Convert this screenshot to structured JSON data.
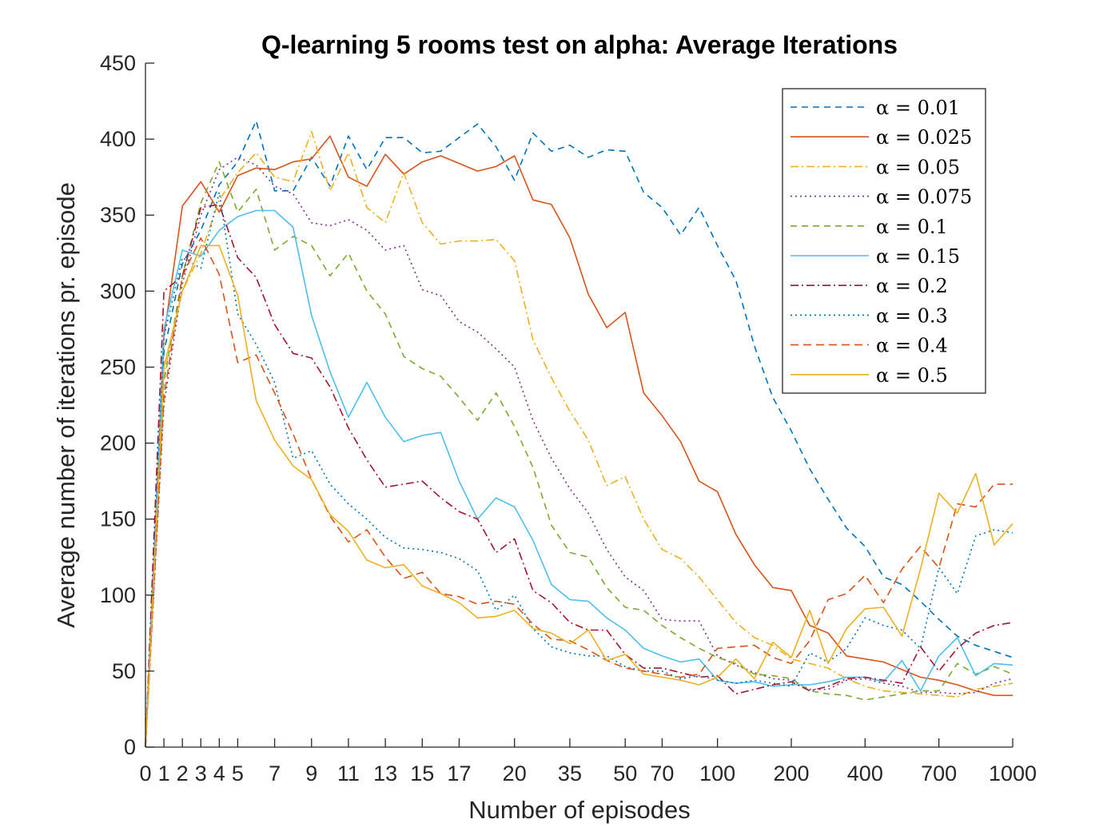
{
  "chart_data": {
    "type": "line",
    "title": "Q-learning 5 rooms test on alpha: Average Iterations",
    "xlabel": "Number of episodes",
    "ylabel": "Average number of iterations pr. episode",
    "ylim": [
      0,
      450
    ],
    "yticks": [
      0,
      50,
      100,
      150,
      200,
      250,
      300,
      350,
      400,
      450
    ],
    "xtick_labels": [
      "0",
      "1",
      "2",
      "3",
      "4",
      "5",
      "7",
      "9",
      "11",
      "13",
      "15",
      "17",
      "20",
      "35",
      "50",
      "70",
      "100",
      "200",
      "400",
      "700",
      "1000"
    ],
    "xtick_index": [
      0,
      1,
      2,
      3,
      4,
      5,
      7,
      9,
      11,
      13,
      15,
      17,
      20,
      23,
      26,
      28,
      31,
      35,
      39,
      43,
      47
    ],
    "grid": false,
    "legend_position": "top-right",
    "x_positions_count": 47,
    "series": [
      {
        "name": "α = 0.01",
        "color": "#0072BD",
        "dash": "8,6",
        "values": [
          0,
          260,
          318,
          340,
          370,
          385,
          412,
          366,
          366,
          388,
          369,
          402,
          380,
          401,
          401,
          391,
          392,
          401,
          410,
          395,
          373,
          404,
          392,
          396,
          388,
          393,
          392,
          365,
          355,
          337,
          355,
          330,
          307,
          264,
          230,
          208,
          183,
          163,
          144,
          132,
          112,
          107,
          96,
          84,
          73,
          67,
          63,
          59
        ]
      },
      {
        "name": "α = 0.025",
        "color": "#D95319",
        "dash": "",
        "values": [
          0,
          270,
          356,
          372,
          352,
          376,
          381,
          380,
          385,
          387,
          402,
          375,
          369,
          390,
          377,
          385,
          389,
          384,
          379,
          382,
          389,
          360,
          357,
          335,
          298,
          276,
          286,
          233,
          218,
          201,
          175,
          168,
          140,
          120,
          105,
          103,
          80,
          75,
          60,
          58,
          56,
          51,
          46,
          44,
          41,
          37,
          34,
          34
        ]
      },
      {
        "name": "α = 0.05",
        "color": "#EDB120",
        "dash": "10,4,2,4",
        "values": [
          0,
          245,
          300,
          325,
          360,
          378,
          391,
          375,
          372,
          405,
          366,
          391,
          355,
          345,
          378,
          345,
          331,
          333,
          333,
          334,
          320,
          268,
          243,
          221,
          202,
          172,
          178,
          150,
          130,
          124,
          112,
          97,
          82,
          72,
          67,
          58,
          55,
          52,
          45,
          40,
          37,
          36,
          35,
          34,
          33,
          38,
          40,
          42
        ]
      },
      {
        "name": "α = 0.075",
        "color": "#7E2F8E",
        "dash": "2,4",
        "values": [
          0,
          225,
          305,
          350,
          380,
          388,
          383,
          369,
          364,
          345,
          343,
          347,
          340,
          327,
          330,
          301,
          297,
          280,
          273,
          262,
          250,
          215,
          190,
          170,
          154,
          130,
          112,
          103,
          84,
          83,
          83,
          60,
          54,
          49,
          45,
          44,
          38,
          38,
          44,
          45,
          42,
          40,
          36,
          36,
          35,
          36,
          42,
          45
        ]
      },
      {
        "name": "α = 0.1",
        "color": "#77AC30",
        "dash": "8,6",
        "values": [
          0,
          240,
          310,
          358,
          385,
          352,
          367,
          327,
          336,
          330,
          310,
          325,
          300,
          285,
          257,
          249,
          244,
          230,
          215,
          233,
          211,
          184,
          146,
          128,
          125,
          105,
          92,
          90,
          80,
          72,
          65,
          59,
          55,
          48,
          47,
          45,
          37,
          35,
          34,
          31,
          33,
          35,
          37,
          37,
          55,
          48,
          53,
          48
        ]
      },
      {
        "name": "α = 0.15",
        "color": "#4DBEEE",
        "dash": "",
        "values": [
          0,
          275,
          327,
          323,
          340,
          349,
          353,
          353,
          342,
          284,
          247,
          217,
          240,
          217,
          201,
          205,
          207,
          175,
          150,
          164,
          158,
          136,
          107,
          97,
          96,
          85,
          77,
          65,
          60,
          56,
          58,
          44,
          42,
          43,
          40,
          41,
          41,
          43,
          46,
          46,
          43,
          57,
          37,
          60,
          72,
          47,
          55,
          54
        ]
      },
      {
        "name": "α = 0.2",
        "color": "#A2142F",
        "dash": "10,4,2,4",
        "values": [
          0,
          300,
          310,
          355,
          357,
          322,
          309,
          278,
          259,
          256,
          237,
          210,
          189,
          171,
          173,
          175,
          164,
          155,
          150,
          128,
          137,
          103,
          95,
          82,
          77,
          77,
          61,
          52,
          52,
          49,
          46,
          47,
          35,
          38,
          41,
          43,
          37,
          40,
          45,
          46,
          44,
          42,
          66,
          50,
          65,
          75,
          80,
          82
        ]
      },
      {
        "name": "α = 0.3",
        "color": "#0072BD",
        "dash": "2,4",
        "values": [
          0,
          270,
          322,
          315,
          365,
          285,
          265,
          240,
          190,
          195,
          173,
          160,
          150,
          138,
          131,
          130,
          128,
          124,
          116,
          90,
          100,
          78,
          66,
          62,
          60,
          60,
          53,
          50,
          50,
          45,
          47,
          44,
          42,
          44,
          42,
          40,
          62,
          56,
          65,
          85,
          80,
          77,
          65,
          118,
          101,
          139,
          143,
          141
        ]
      },
      {
        "name": "α = 0.4",
        "color": "#D95319",
        "dash": "10,6",
        "values": [
          0,
          230,
          310,
          335,
          311,
          253,
          258,
          233,
          206,
          176,
          152,
          135,
          143,
          125,
          111,
          115,
          101,
          99,
          94,
          96,
          94,
          81,
          71,
          70,
          64,
          57,
          52,
          50,
          48,
          46,
          48,
          65,
          66,
          67,
          59,
          55,
          70,
          97,
          101,
          113,
          95,
          117,
          132,
          118,
          160,
          158,
          173,
          173
        ]
      },
      {
        "name": "α = 0.5",
        "color": "#EDB120",
        "dash": "",
        "values": [
          0,
          250,
          300,
          330,
          330,
          297,
          228,
          202,
          185,
          176,
          153,
          142,
          123,
          118,
          120,
          106,
          101,
          95,
          85,
          86,
          90,
          78,
          75,
          68,
          77,
          57,
          61,
          48,
          46,
          44,
          41,
          46,
          58,
          45,
          69,
          59,
          90,
          55,
          78,
          91,
          92,
          73,
          117,
          167,
          154,
          180,
          133,
          147
        ]
      }
    ]
  }
}
